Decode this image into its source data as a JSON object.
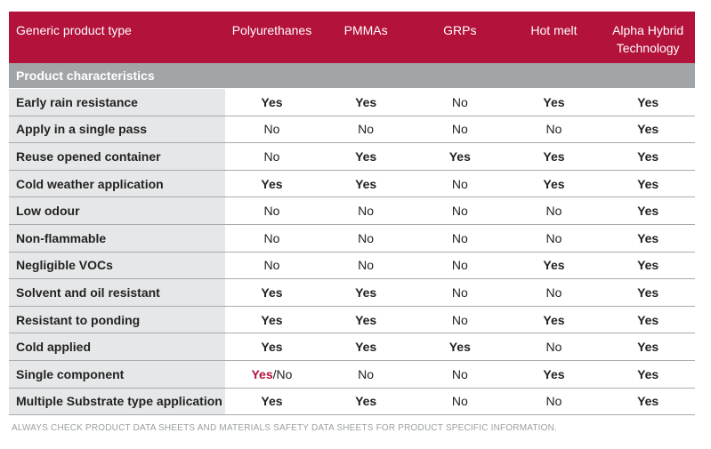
{
  "header": {
    "first": "Generic product type",
    "columns": [
      "Polyurethanes",
      "PMMAs",
      "GRPs",
      "Hot melt",
      "Alpha Hybrid Technology"
    ]
  },
  "section": "Product characteristics",
  "rows": [
    {
      "label": "Early rain resistance",
      "values": [
        "Yes",
        "Yes",
        "No",
        "Yes",
        "Yes"
      ]
    },
    {
      "label": "Apply in a single pass",
      "values": [
        "No",
        "No",
        "No",
        "No",
        "Yes"
      ]
    },
    {
      "label": "Reuse opened container",
      "values": [
        "No",
        "Yes",
        "Yes",
        "Yes",
        "Yes"
      ]
    },
    {
      "label": "Cold weather application",
      "values": [
        "Yes",
        "Yes",
        "No",
        "Yes",
        "Yes"
      ]
    },
    {
      "label": "Low odour",
      "values": [
        "No",
        "No",
        "No",
        "No",
        "Yes"
      ]
    },
    {
      "label": "Non-flammable",
      "values": [
        "No",
        "No",
        "No",
        "No",
        "Yes"
      ]
    },
    {
      "label": "Negligible VOCs",
      "values": [
        "No",
        "No",
        "No",
        "Yes",
        "Yes"
      ]
    },
    {
      "label": "Solvent and oil resistant",
      "values": [
        "Yes",
        "Yes",
        "No",
        "No",
        "Yes"
      ]
    },
    {
      "label": "Resistant to ponding",
      "values": [
        "Yes",
        "Yes",
        "No",
        "Yes",
        "Yes"
      ]
    },
    {
      "label": "Cold applied",
      "values": [
        "Yes",
        "Yes",
        "Yes",
        "No",
        "Yes"
      ]
    },
    {
      "label": "Single component",
      "values": [
        "Yes/No",
        "No",
        "No",
        "Yes",
        "Yes"
      ]
    },
    {
      "label": "Multiple Substrate type application",
      "values": [
        "Yes",
        "Yes",
        "No",
        "No",
        "Yes"
      ]
    }
  ],
  "footer": "ALWAYS CHECK  PRODUCT DATA SHEETS  AND MATERIALS SAFETY DATA SHEETS FOR  PRODUCT SPECIFIC INFORMATION.",
  "colors": {
    "accent": "#b3123a",
    "section_bg": "#a1a5a8",
    "label_bg": "#e6e7e8"
  }
}
